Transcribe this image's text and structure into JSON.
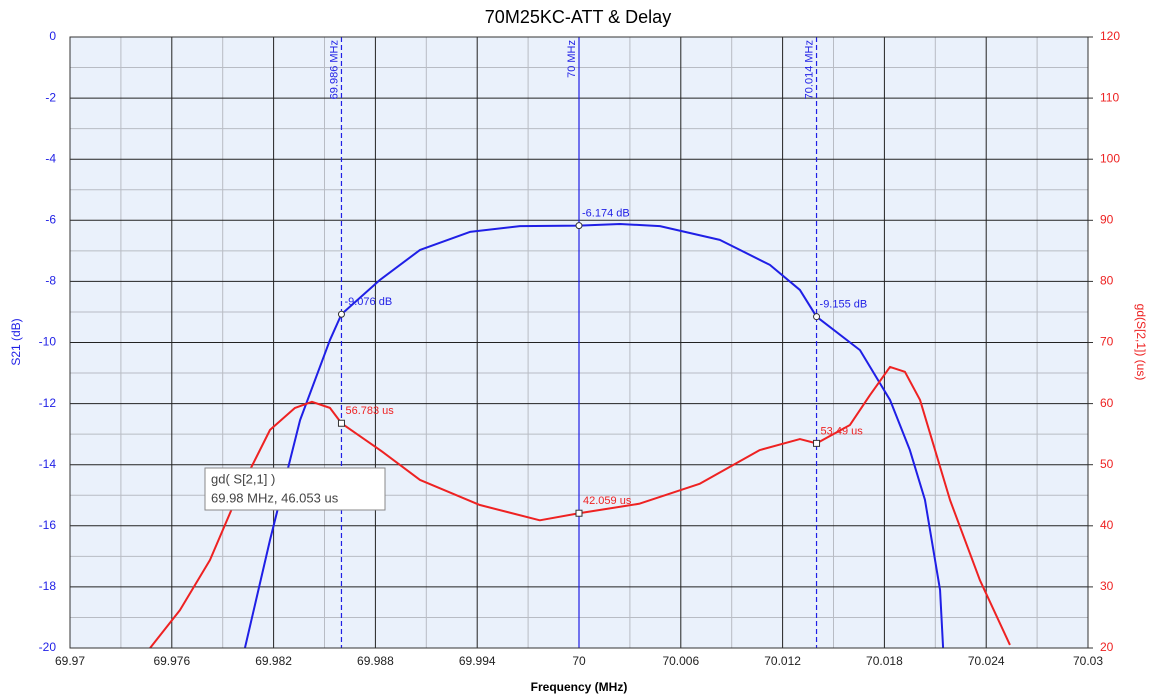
{
  "chart_data": {
    "type": "line",
    "title": "70M25KC-ATT & Delay",
    "x_label": "Frequency (MHz)",
    "y_label": "S21 (dB)",
    "y2_label": "gd(S[2,1]) (us)",
    "xlim": [
      69.97,
      70.03
    ],
    "xticks": [
      69.97,
      69.976,
      69.982,
      69.988,
      69.994,
      70,
      70.006,
      70.012,
      70.018,
      70.024,
      70.03
    ],
    "ylim": [
      -20,
      0
    ],
    "yticks": [
      0,
      -2,
      -4,
      -6,
      -8,
      -10,
      -12,
      -14,
      -16,
      -18,
      -20
    ],
    "y2lim": [
      20,
      120
    ],
    "y2ticks": [
      120,
      110,
      100,
      90,
      80,
      70,
      60,
      50,
      40,
      30,
      20
    ],
    "grid": true,
    "minor_grid": true,
    "series": [
      {
        "name": "S21",
        "color": "#1f1fe6",
        "axis": "y",
        "x": [
          69.98031,
          69.98179,
          69.98356,
          69.98532,
          69.986,
          69.98827,
          69.99063,
          69.99357,
          69.99652,
          70,
          70.00242,
          70.00477,
          70.0083,
          70.01125,
          70.01302,
          70.014,
          70.01656,
          70.01833,
          70.0195,
          70.02039,
          70.02128,
          70.02146
        ],
        "values": [
          -20,
          -16.46,
          -12.54,
          -9.92,
          -9.076,
          -7.95,
          -6.97,
          -6.38,
          -6.19,
          -6.174,
          -6.12,
          -6.19,
          -6.64,
          -7.46,
          -8.28,
          -9.155,
          -10.25,
          -11.88,
          -13.52,
          -15.15,
          -18.1,
          -20
        ]
      },
      {
        "name": "gd(S[2,1])",
        "color": "#ee2222",
        "axis": "y2",
        "x": [
          69.97472,
          69.97648,
          69.97825,
          69.98002,
          69.98179,
          69.98326,
          69.98426,
          69.98532,
          69.986,
          69.98827,
          69.99063,
          69.99416,
          69.99769,
          70,
          70.00354,
          70.00713,
          70.01066,
          70.01302,
          70.014,
          70.01597,
          70.01715,
          70.01833,
          70.01921,
          70.0201,
          70.02187,
          70.02363,
          70.0254
        ],
        "values": [
          20,
          26.2,
          34.4,
          45.9,
          55.7,
          59.3,
          60.3,
          59.3,
          56.783,
          52.4,
          47.5,
          43.4,
          40.9,
          42.059,
          43.6,
          46.9,
          52.4,
          54.2,
          53.49,
          56.5,
          61.4,
          66.0,
          65.2,
          60.6,
          44.2,
          31.1,
          20.5
        ]
      }
    ],
    "markers": [
      {
        "x": 69.986,
        "label": "69.986 MHz",
        "s21": -9.076,
        "s21_label": "-9.076 dB",
        "gd": 56.783,
        "gd_label": "56.783 us"
      },
      {
        "x": 70,
        "label": "70 MHz",
        "s21": -6.174,
        "s21_label": "-6.174 dB",
        "gd": 42.059,
        "gd_label": "42.059 us"
      },
      {
        "x": 70.014,
        "label": "70.014 MHz",
        "s21": -9.155,
        "s21_label": "-9.155 dB",
        "gd": 53.49,
        "gd_label": "53.49 us"
      }
    ],
    "tooltip": {
      "title": "gd( S[2,1] )",
      "text": "69.98 MHz, 46.053 us"
    }
  }
}
